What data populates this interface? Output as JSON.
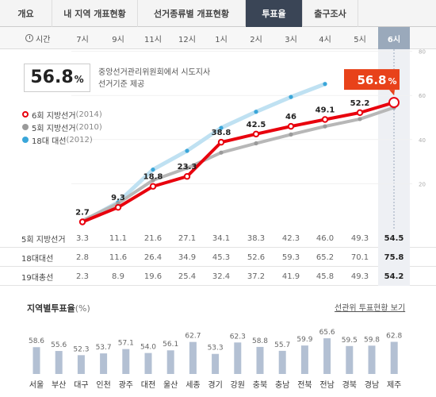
{
  "tabs": [
    {
      "label": "개요",
      "active": false
    },
    {
      "label": "내 지역 개표현황",
      "active": false
    },
    {
      "label": "선거종류별 개표현황",
      "active": false
    },
    {
      "label": "투표율",
      "active": true
    },
    {
      "label": "출구조사",
      "active": false
    }
  ],
  "timebar": {
    "label": "시간",
    "hours": [
      "7시",
      "9시",
      "11시",
      "12시",
      "1시",
      "2시",
      "3시",
      "4시",
      "5시",
      "6시"
    ],
    "active_index": 9
  },
  "headline": {
    "value": "56.8",
    "unit": "%",
    "source": "중앙선거관리위원회에서 시도지사 선거기준 제공"
  },
  "callout": {
    "value": "56.8",
    "unit": "%"
  },
  "colors": {
    "series_6th": "#e8000d",
    "series_5th": "#b7b7b7",
    "series_18th": "#bfe1f2",
    "dot_18th": "#3aa6d9",
    "callout_bg": "#e8421a",
    "region_bar": "#b3c0d3"
  },
  "chart_data": {
    "type": "line",
    "x": [
      "7시",
      "9시",
      "11시",
      "12시",
      "1시",
      "2시",
      "3시",
      "4시",
      "5시",
      "6시"
    ],
    "ylim": [
      0,
      100
    ],
    "yticks": [
      "20",
      "40",
      "60",
      "80"
    ],
    "series": [
      {
        "name": "6회 지방선거",
        "paren": "(2014)",
        "values": [
          2.7,
          9.3,
          18.8,
          23.3,
          38.8,
          42.5,
          46,
          49.1,
          52.2,
          56.8
        ],
        "labels": [
          "2.7",
          "9.3",
          "18.8",
          "23.3",
          "38.8",
          "42.5",
          "46",
          "49.1",
          "52.2",
          ""
        ]
      },
      {
        "name": "5회 지방선거",
        "paren": "(2010)",
        "values": [
          3.3,
          11.1,
          21.6,
          27.1,
          34.1,
          38.3,
          42.3,
          46.0,
          49.3,
          54.5
        ]
      },
      {
        "name": "18대 대선",
        "paren": "(2012)",
        "values": [
          2.8,
          11.6,
          26.4,
          34.9,
          45.3,
          52.6,
          59.3,
          65.2,
          70.1,
          75.8
        ]
      }
    ]
  },
  "table": [
    {
      "label": "5회 지방선거",
      "values": [
        "3.3",
        "11.1",
        "21.6",
        "27.1",
        "34.1",
        "38.3",
        "42.3",
        "46.0",
        "49.3",
        "54.5"
      ]
    },
    {
      "label": "18대대선",
      "values": [
        "2.8",
        "11.6",
        "26.4",
        "34.9",
        "45.3",
        "52.6",
        "59.3",
        "65.2",
        "70.1",
        "75.8"
      ]
    },
    {
      "label": "19대총선",
      "values": [
        "2.3",
        "8.9",
        "19.6",
        "25.4",
        "32.4",
        "37.2",
        "41.9",
        "45.8",
        "49.3",
        "54.2"
      ]
    }
  ],
  "region_section": {
    "title": "지역별투표율",
    "unit": "(%)",
    "link": "선관위 투표현황 보기"
  },
  "region_data": {
    "type": "bar",
    "categories": [
      "서울",
      "부산",
      "대구",
      "인천",
      "광주",
      "대전",
      "울산",
      "세종",
      "경기",
      "강원",
      "충북",
      "충남",
      "전북",
      "전남",
      "경북",
      "경남",
      "제주"
    ],
    "values": [
      58.6,
      55.6,
      52.3,
      53.7,
      57.1,
      54.0,
      56.1,
      62.7,
      53.3,
      62.3,
      58.8,
      55.7,
      59.9,
      65.6,
      59.5,
      59.8,
      62.8
    ],
    "labels": [
      "58.6",
      "55.6",
      "52.3",
      "53.7",
      "57.1",
      "54.0",
      "56.1",
      "62.7",
      "53.3",
      "62.3",
      "58.8",
      "55.7",
      "59.9",
      "65.6",
      "59.5",
      "59.8",
      "62.8"
    ]
  }
}
